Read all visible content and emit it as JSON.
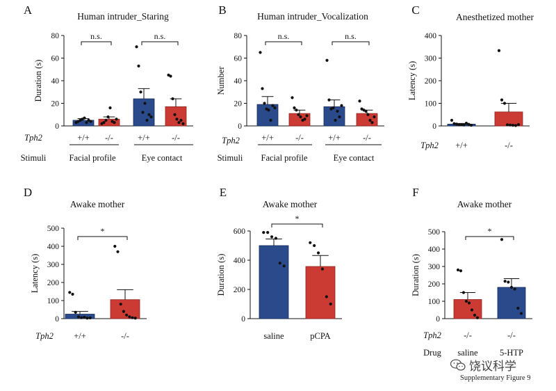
{
  "figure_caption": "Supplementary Figure 9",
  "watermark_text": "饶议科学",
  "watermark_icon": "wechat-logo-icon",
  "colors": {
    "blue": "#2a4a8b",
    "red": "#cc3b33",
    "text": "#111111"
  },
  "chart_data": [
    {
      "id": "A",
      "letter": "A",
      "type": "bar",
      "title": "Human intruder_Staring",
      "ylabel": "Duration (s)",
      "ylim": [
        0,
        80
      ],
      "yticks": [
        0,
        20,
        40,
        60,
        80
      ],
      "row_labels": {
        "genotype": "Tph2",
        "stimuli": "Stimuli"
      },
      "groups": [
        "Facial profile",
        "Eye contact"
      ],
      "categories": [
        "+/+",
        "-/-",
        "+/+",
        "-/-"
      ],
      "series": [
        {
          "genotype": "+/+",
          "group": "Facial profile",
          "color": "blue",
          "value": 5,
          "sem": 1.5,
          "points": [
            3,
            4,
            5,
            6,
            7,
            3,
            5,
            4
          ]
        },
        {
          "genotype": "-/-",
          "group": "Facial profile",
          "color": "red",
          "value": 6,
          "sem": 2,
          "points": [
            2,
            3,
            5,
            8,
            16,
            4,
            3,
            6
          ]
        },
        {
          "genotype": "+/+",
          "group": "Eye contact",
          "color": "blue",
          "value": 24,
          "sem": 9,
          "points": [
            70,
            53,
            30,
            12,
            20,
            5,
            10,
            8
          ]
        },
        {
          "genotype": "-/-",
          "group": "Eye contact",
          "color": "red",
          "value": 17,
          "sem": 7,
          "points": [
            45,
            44,
            24,
            10,
            6,
            3,
            5,
            2
          ]
        }
      ],
      "significance": [
        {
          "from": 0,
          "to": 1,
          "label": "n.s."
        },
        {
          "from": 2,
          "to": 3,
          "label": "n.s."
        }
      ]
    },
    {
      "id": "B",
      "letter": "B",
      "type": "bar",
      "title": "Human intruder_Vocalization",
      "ylabel": "Number",
      "ylim": [
        0,
        80
      ],
      "yticks": [
        0,
        20,
        40,
        60,
        80
      ],
      "row_labels": {
        "genotype": "Tph2",
        "stimuli": "Stimuli"
      },
      "groups": [
        "Facial profile",
        "Eye contact"
      ],
      "categories": [
        "+/+",
        "-/-",
        "+/+",
        "-/-"
      ],
      "series": [
        {
          "genotype": "+/+",
          "group": "Facial profile",
          "color": "blue",
          "value": 19,
          "sem": 7,
          "points": [
            65,
            33,
            20,
            15,
            14,
            5,
            18,
            16
          ]
        },
        {
          "genotype": "-/-",
          "group": "Facial profile",
          "color": "red",
          "value": 11,
          "sem": 3,
          "points": [
            25,
            16,
            14,
            10,
            8,
            5,
            6,
            9
          ]
        },
        {
          "genotype": "+/+",
          "group": "Eye contact",
          "color": "blue",
          "value": 17,
          "sem": 6,
          "points": [
            58,
            23,
            15,
            16,
            5,
            13,
            8,
            18
          ]
        },
        {
          "genotype": "-/-",
          "group": "Eye contact",
          "color": "red",
          "value": 11,
          "sem": 3,
          "points": [
            22,
            15,
            14,
            13,
            10,
            5,
            3,
            8
          ]
        }
      ],
      "significance": [
        {
          "from": 0,
          "to": 1,
          "label": "n.s."
        },
        {
          "from": 2,
          "to": 3,
          "label": "n.s."
        }
      ]
    },
    {
      "id": "C",
      "letter": "C",
      "type": "bar",
      "title": "Anesthetized mother",
      "ylabel": "Latency (s)",
      "ylim": [
        0,
        400
      ],
      "yticks": [
        0,
        100,
        200,
        300,
        400
      ],
      "row_labels": {
        "genotype": "Tph2"
      },
      "categories": [
        "+/+",
        "-/-"
      ],
      "series": [
        {
          "genotype": "+/+",
          "color": "blue",
          "value": 8,
          "sem": 3,
          "points": [
            25,
            10,
            8,
            5,
            6,
            4,
            12,
            7,
            3
          ]
        },
        {
          "genotype": "-/-",
          "color": "red",
          "value": 62,
          "sem": 38,
          "points": [
            333,
            115,
            100,
            5,
            4,
            3,
            2,
            6
          ]
        }
      ],
      "significance": []
    },
    {
      "id": "D",
      "letter": "D",
      "type": "bar",
      "title": "Awake mother",
      "ylabel": "Latency (s)",
      "ylim": [
        0,
        500
      ],
      "yticks": [
        0,
        100,
        200,
        300,
        400,
        500
      ],
      "row_labels": {
        "genotype": "Tph2"
      },
      "categories": [
        "+/+",
        "-/-"
      ],
      "series": [
        {
          "genotype": "+/+",
          "color": "blue",
          "value": 25,
          "sem": 15,
          "points": [
            145,
            135,
            35,
            10,
            5,
            8,
            3,
            4
          ]
        },
        {
          "genotype": "-/-",
          "color": "red",
          "value": 105,
          "sem": 55,
          "points": [
            400,
            370,
            80,
            40,
            20,
            10,
            5,
            3
          ]
        }
      ],
      "significance": [
        {
          "from": 0,
          "to": 1,
          "label": "*"
        }
      ]
    },
    {
      "id": "E",
      "letter": "E",
      "type": "bar",
      "title": "Awake mother",
      "ylabel": "Duration (s)",
      "ylim": [
        0,
        600
      ],
      "yticks": [
        0,
        200,
        400,
        600
      ],
      "categories": [
        "saline",
        "pCPA"
      ],
      "series": [
        {
          "genotype": "saline",
          "color": "blue",
          "value": 500,
          "sem": 45,
          "points": [
            590,
            590,
            560,
            550,
            380,
            360
          ]
        },
        {
          "genotype": "pCPA",
          "color": "red",
          "value": 357,
          "sem": 75,
          "points": [
            520,
            500,
            450,
            340,
            150,
            100
          ]
        }
      ],
      "significance": [
        {
          "from": 0,
          "to": 1,
          "label": "*"
        }
      ]
    },
    {
      "id": "F",
      "letter": "F",
      "type": "bar",
      "title": "Awake mother",
      "ylabel": "Duration (s)",
      "ylim": [
        0,
        500
      ],
      "yticks": [
        0,
        100,
        200,
        300,
        400,
        500
      ],
      "row_labels": {
        "genotype": "Tph2",
        "stimuli": "Drug"
      },
      "tph2_values": [
        "-/-",
        "-/-"
      ],
      "categories": [
        "saline",
        "5-HTP"
      ],
      "series": [
        {
          "genotype": "saline",
          "color": "red",
          "value": 110,
          "sem": 40,
          "points": [
            280,
            275,
            150,
            100,
            90,
            50,
            20,
            5
          ]
        },
        {
          "genotype": "5-HTP",
          "color": "blue",
          "value": 180,
          "sem": 50,
          "points": [
            455,
            215,
            210,
            180,
            170,
            60,
            30
          ]
        }
      ],
      "significance": [
        {
          "from": 0,
          "to": 1,
          "label": "*"
        }
      ]
    }
  ]
}
